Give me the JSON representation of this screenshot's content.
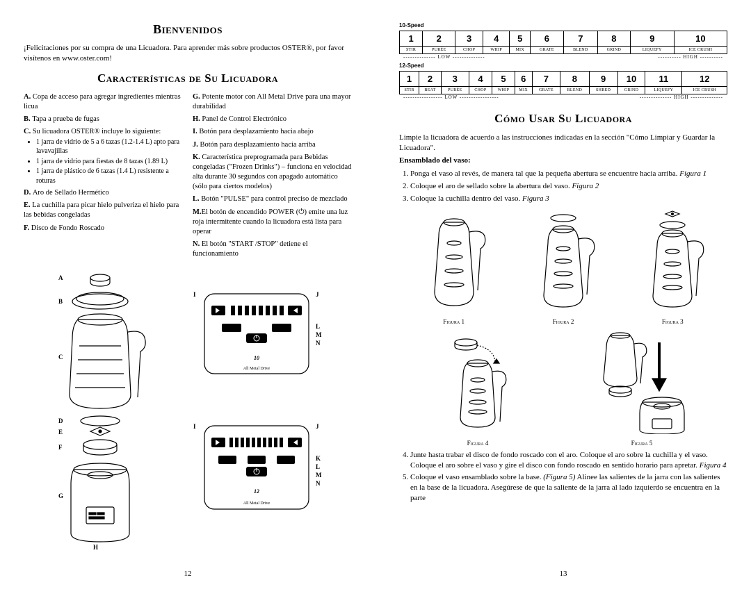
{
  "page_left": {
    "title": "Bienvenidos",
    "intro": "¡Felicitaciones por su compra de una Licuadora. Para aprender más sobre productos OSTER®, por favor visítenos en www.oster.com!",
    "section_title": "Características de Su Licuadora",
    "features_left": {
      "A": "Copa de acceso para agregar ingredientes mientras licua",
      "B": "Tapa a prueba de fugas",
      "C_lead": "Su licuadora OSTER® incluye lo siguiente:",
      "C_items": [
        "1 jarra de vidrio de 5 a 6 tazas (1.2-1.4 L) apto para lavavajillas",
        "1 jarra de vidrio para fiestas de 8 tazas (1.89 L)",
        "1 jarra de plástico de 6 tazas (1.4 L) resistente a roturas"
      ],
      "D": "Aro de Sellado Hermético",
      "E": "La cuchilla para picar hielo pulveriza el hielo para las bebidas congeladas",
      "F": "Disco de Fondo Roscado"
    },
    "features_right": {
      "G": "Potente motor con All Metal Drive para una mayor durabilidad",
      "H": "Panel de Control Electrónico",
      "I": "Botón para desplazamiento hacia abajo",
      "J": "Botón para desplazamiento hacia arriba",
      "K": "Característica preprogramada para Bebidas congeladas (\"Frozen Drinks\") – funciona en velocidad alta durante 30 segundos con apagado automático (sólo para ciertos modelos)",
      "L": "Botón \"PULSE\" para control preciso de mezclado",
      "M": "El botón de encendido POWER (⏻) emite una luz roja intermitente cuando la licuadora está lista para operar",
      "N": "El botón \"START /STOP\" detiene el funcionamiento"
    },
    "diagram_labels": [
      "A",
      "B",
      "C",
      "D",
      "E",
      "F",
      "G",
      "H",
      "I",
      "J",
      "K",
      "L",
      "M",
      "N"
    ],
    "panel1_caption": "All Metal Drive",
    "panel2_caption": "All Metal Drive",
    "page_num": "12"
  },
  "page_right": {
    "speed10_label": "10-Speed",
    "speed10_nums": [
      "1",
      "2",
      "3",
      "4",
      "5",
      "6",
      "7",
      "8",
      "9",
      "10"
    ],
    "speed10_fns": [
      "STIR",
      "PURÉE",
      "CHOP",
      "WHIP",
      "MIX",
      "GRATE",
      "BLEND",
      "GRIND",
      "LIQUEFY",
      "ICE CRUSH"
    ],
    "speed12_label": "12-Speed",
    "speed12_nums": [
      "1",
      "2",
      "3",
      "4",
      "5",
      "6",
      "7",
      "8",
      "9",
      "10",
      "11",
      "12"
    ],
    "speed12_fns": [
      "STIR",
      "BEAT",
      "PURÉE",
      "CHOP",
      "WHIP",
      "MIX",
      "GRATE",
      "BLEND",
      "SHRED",
      "GRIND",
      "LIQUEFY",
      "ICE CRUSH"
    ],
    "low_label": "LOW",
    "high_label": "HIGH",
    "section_title": "Cómo Usar Su Licuadora",
    "intro": "Limpie la licuadora de acuerdo a las instrucciones indicadas en la sección \"Cómo Limpiar y Guardar la Licuadora\".",
    "subhead": "Ensamblado del vaso:",
    "step1_a": "Ponga el vaso al revés, de manera tal que la pequeña abertura se encuentre hacia arriba. ",
    "step1_b": "Figura 1",
    "step2_a": "Coloque el aro de sellado sobre la abertura del vaso. ",
    "step2_b": "Figura 2",
    "step3_a": "Coloque la cuchilla dentro del vaso. ",
    "step3_b": "Figura 3",
    "fig1": "Figura 1",
    "fig2": "Figura 2",
    "fig3": "Figura 3",
    "fig4": "Figura 4",
    "fig5": "Figura 5",
    "step4_a": "Junte hasta trabar el disco de fondo roscado con el aro. Coloque el aro sobre la cuchilla y el vaso. Coloque el aro sobre el vaso y gire el disco con fondo roscado en sentido horario para apretar. ",
    "step4_b": "Figura 4",
    "step5_a": "Coloque el vaso ensamblado sobre la base. ",
    "step5_b": "(Figura 5)",
    "step5_c": " Alinee las salientes de la jarra con las salientes en la base de la licuadora. Asegúrese de que la saliente de la jarra al lado izquierdo se encuentra en la parte",
    "page_num": "13"
  },
  "style": {
    "text_color": "#000000",
    "background_color": "#ffffff",
    "title_fontsize": 18,
    "section_fontsize": 17,
    "body_fontsize": 11,
    "feature_fontsize": 10.5,
    "table_num_fontsize": 13,
    "table_fn_fontsize": 6,
    "caption_fontsize": 9
  }
}
